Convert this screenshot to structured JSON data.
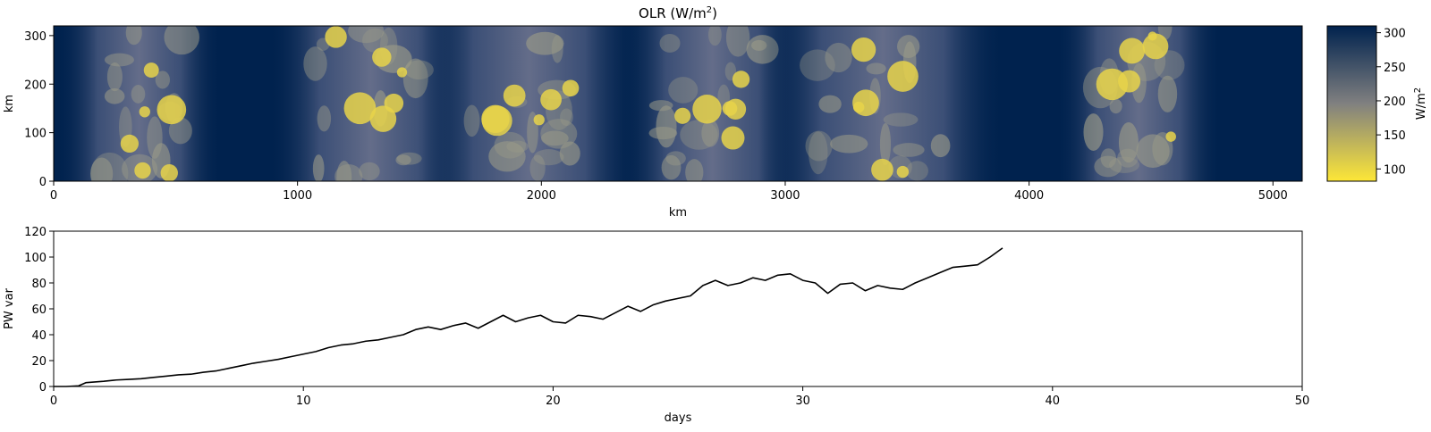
{
  "chart_data": [
    {
      "type": "heatmap",
      "title": "OLR (W/m",
      "title_sup": "2",
      "title_suffix": ")",
      "xlabel": "km",
      "ylabel": "km",
      "xlim": [
        0,
        5120
      ],
      "ylim": [
        0,
        320
      ],
      "xticks": [
        0,
        1000,
        2000,
        3000,
        4000,
        5000
      ],
      "yticks": [
        0,
        100,
        200,
        300
      ],
      "colormap": "cividis_r",
      "colorbar": {
        "label": "W/m",
        "label_sup": "2",
        "range": [
          82,
          310
        ],
        "ticks": [
          100,
          150,
          200,
          250,
          300
        ],
        "color_low": "#fde737",
        "color_mid": "#808080",
        "color_high": "#00224e"
      },
      "convective_bands_km": [
        {
          "center": 350,
          "width": 340
        },
        {
          "center": 1300,
          "width": 420
        },
        {
          "center": 1950,
          "width": 460
        },
        {
          "center": 2700,
          "width": 380
        },
        {
          "center": 3400,
          "width": 500
        },
        {
          "center": 4450,
          "width": 340
        }
      ]
    },
    {
      "type": "line",
      "xlabel": "days",
      "ylabel": "PW var",
      "xlim": [
        0,
        50
      ],
      "ylim": [
        0,
        120
      ],
      "xticks": [
        0,
        10,
        20,
        30,
        40,
        50
      ],
      "yticks": [
        0,
        20,
        40,
        60,
        80,
        100,
        120
      ],
      "color": "#000000",
      "series": [
        {
          "x": [
            0,
            0.5,
            1,
            1.3,
            2,
            2.5,
            3,
            3.5,
            4,
            4.5,
            5,
            5.5,
            6,
            6.5,
            7,
            7.5,
            8,
            8.5,
            9,
            9.5,
            10,
            10.5,
            11,
            11.5,
            12,
            12.5,
            13,
            13.5,
            14,
            14.5,
            15,
            15.5,
            16,
            16.5,
            17,
            17.5,
            18,
            18.5,
            19,
            19.5,
            20,
            20.5,
            21,
            21.5,
            22,
            22.5,
            23,
            23.5,
            24,
            24.5,
            25,
            25.5,
            26,
            26.5,
            27,
            27.5,
            28,
            28.5,
            29,
            29.5,
            30,
            30.5,
            31,
            31.5,
            32,
            32.5,
            33,
            33.5,
            34,
            34.5,
            35,
            35.5,
            36,
            36.5,
            37,
            37.5,
            38
          ],
          "y": [
            0,
            0,
            0.5,
            3,
            4,
            5,
            5.5,
            6,
            7,
            8,
            9,
            9.5,
            11,
            12,
            14,
            16,
            18,
            19.5,
            21,
            23,
            25,
            27,
            30,
            32,
            33,
            35,
            36,
            38,
            40,
            44,
            46,
            44,
            47,
            49,
            45,
            50,
            55,
            50,
            53,
            55,
            50,
            49,
            55,
            54,
            52,
            57,
            62,
            58,
            63,
            66,
            68,
            70,
            78,
            82,
            78,
            80,
            84,
            82,
            86,
            87,
            82,
            80,
            72,
            79,
            80,
            74,
            78,
            76,
            75,
            80,
            84,
            88,
            92,
            93,
            94,
            100,
            107
          ]
        }
      ]
    }
  ]
}
